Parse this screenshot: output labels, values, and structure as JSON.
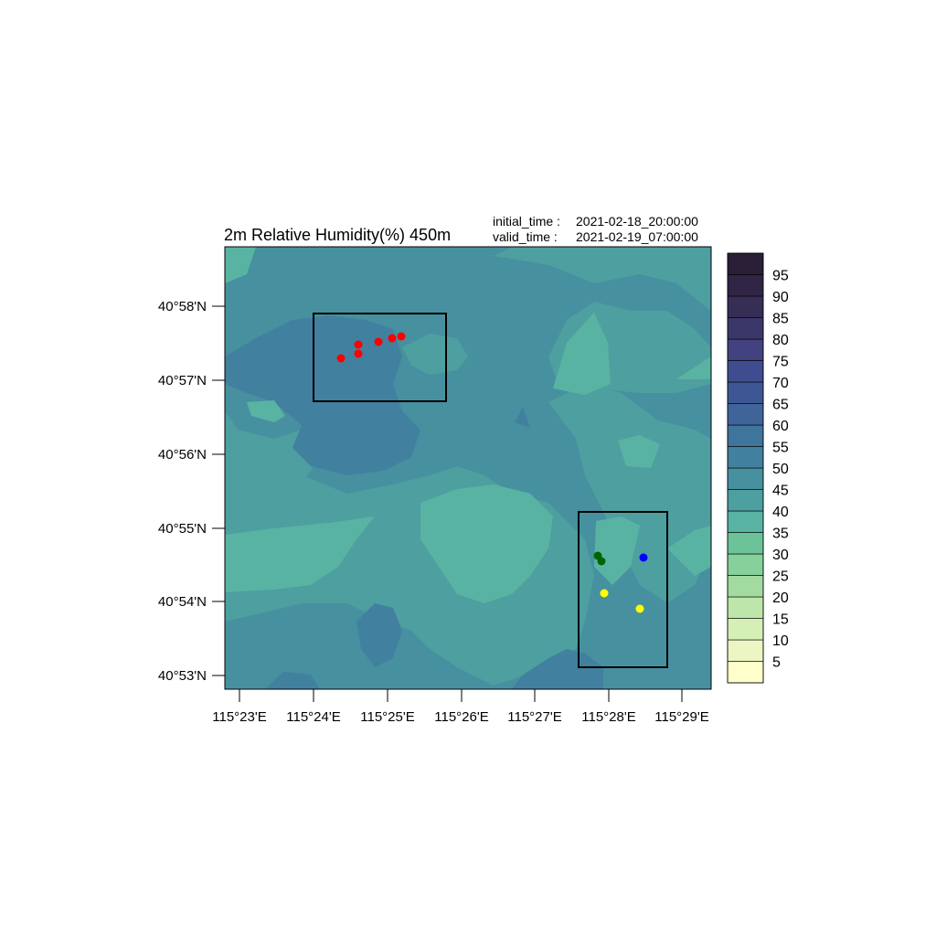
{
  "title": "2m Relative Humidity(%) 450m",
  "time_info": {
    "initial_label": "initial_time :",
    "initial_value": "2021-02-18_20:00:00",
    "valid_label": "valid_time  :",
    "valid_value": "2021-02-19_07:00:00"
  },
  "map": {
    "lat_ticks": [
      "40°58'N",
      "40°57'N",
      "40°56'N",
      "40°55'N",
      "40°54'N",
      "40°53'N"
    ],
    "lon_ticks": [
      "115°23'E",
      "115°24'E",
      "115°25'E",
      "115°26'E",
      "115°27'E",
      "115°28'E",
      "115°29'E"
    ],
    "field_colors": {
      "band_40_45": "#59b3a3",
      "band_45_50": "#4e9fa0",
      "band_50_55": "#47909f",
      "band_55_60": "#42809f",
      "band_60_65": "#3f749d"
    }
  },
  "colorbar": {
    "labels": [
      "95",
      "90",
      "85",
      "80",
      "75",
      "70",
      "65",
      "60",
      "55",
      "50",
      "45",
      "40",
      "35",
      "30",
      "25",
      "20",
      "15",
      "10",
      "5"
    ],
    "colors": [
      "#ffffcc",
      "#ebf6c3",
      "#d5efb7",
      "#bee6ab",
      "#a3da9f",
      "#86d09b",
      "#6cc39a",
      "#59b3a3",
      "#4e9fa0",
      "#47909f",
      "#42809f",
      "#3f749d",
      "#3e649a",
      "#3d5795",
      "#3f4c90",
      "#41427f",
      "#3c3769",
      "#372e56",
      "#302544",
      "#2a1f36"
    ]
  },
  "markers": [
    {
      "name": "red-marker",
      "color": "#ff0000"
    },
    {
      "name": "green-marker",
      "color": "#006400"
    },
    {
      "name": "blue-marker",
      "color": "#0000ff"
    },
    {
      "name": "yellow-marker",
      "color": "#ffff00"
    }
  ]
}
